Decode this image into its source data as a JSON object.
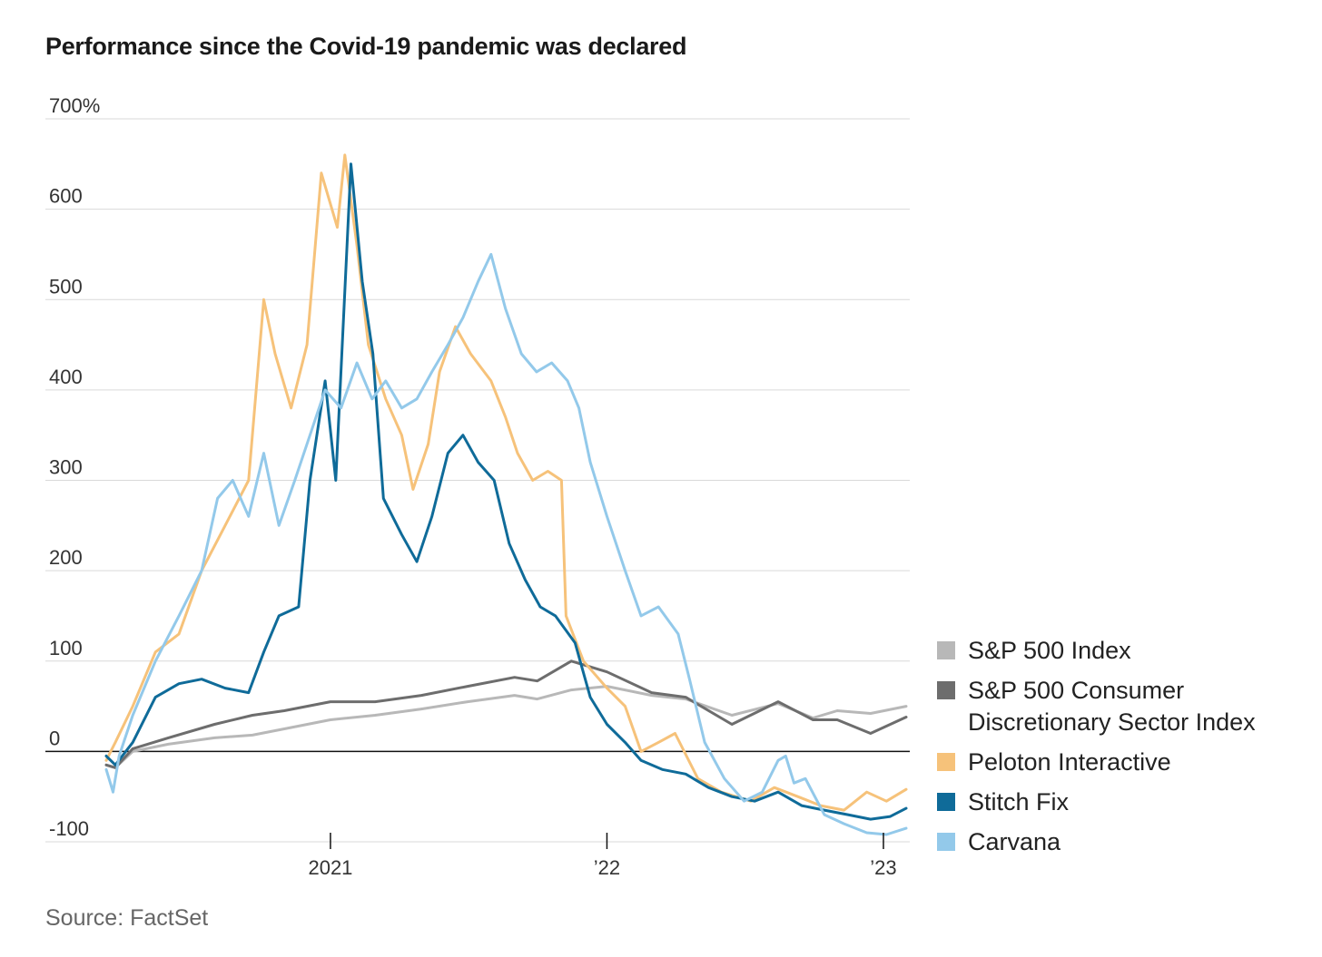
{
  "title": "Performance since the Covid-19 pandemic was declared",
  "source": "Source: FactSet",
  "chart_data": {
    "type": "line",
    "title": "Performance since the Covid-19 pandemic was declared",
    "ylabel": "",
    "xlabel": "",
    "y_unit": "%",
    "ylim": [
      -100,
      700
    ],
    "xlim": [
      "2020-03-11",
      "2023-01-31"
    ],
    "y_ticks": [
      -100,
      0,
      100,
      200,
      300,
      400,
      500,
      600,
      700
    ],
    "y_tick_labels": [
      "-100",
      "0",
      "100",
      "200",
      "300",
      "400",
      "500",
      "600",
      "700%"
    ],
    "x_ticks": [
      "2021-01-01",
      "2022-01-01",
      "2023-01-01"
    ],
    "x_tick_labels": [
      "2021",
      "’22",
      "’23"
    ],
    "grid": true,
    "legend_position": "right-bottom",
    "series": [
      {
        "name": "S&P 500 Index",
        "color": "#b8b8b8",
        "points": [
          [
            "2020-03-11",
            -15
          ],
          [
            "2020-03-23",
            -18
          ],
          [
            "2020-04-15",
            0
          ],
          [
            "2020-06-01",
            8
          ],
          [
            "2020-08-01",
            15
          ],
          [
            "2020-09-20",
            18
          ],
          [
            "2020-11-01",
            25
          ],
          [
            "2021-01-01",
            35
          ],
          [
            "2021-03-01",
            40
          ],
          [
            "2021-05-01",
            47
          ],
          [
            "2021-07-01",
            55
          ],
          [
            "2021-09-01",
            62
          ],
          [
            "2021-10-01",
            58
          ],
          [
            "2021-11-15",
            68
          ],
          [
            "2022-01-01",
            72
          ],
          [
            "2022-03-01",
            62
          ],
          [
            "2022-04-15",
            58
          ],
          [
            "2022-06-15",
            40
          ],
          [
            "2022-08-15",
            53
          ],
          [
            "2022-09-30",
            37
          ],
          [
            "2022-11-01",
            45
          ],
          [
            "2022-12-15",
            42
          ],
          [
            "2023-01-31",
            50
          ]
        ]
      },
      {
        "name": "S&P 500 Consumer Discretionary Sector Index",
        "color": "#6d6d6d",
        "points": [
          [
            "2020-03-11",
            -15
          ],
          [
            "2020-03-23",
            -18
          ],
          [
            "2020-04-15",
            3
          ],
          [
            "2020-06-01",
            15
          ],
          [
            "2020-08-01",
            30
          ],
          [
            "2020-09-20",
            40
          ],
          [
            "2020-11-01",
            45
          ],
          [
            "2021-01-01",
            55
          ],
          [
            "2021-03-01",
            55
          ],
          [
            "2021-05-01",
            62
          ],
          [
            "2021-07-01",
            72
          ],
          [
            "2021-09-01",
            82
          ],
          [
            "2021-10-01",
            78
          ],
          [
            "2021-11-15",
            100
          ],
          [
            "2022-01-01",
            88
          ],
          [
            "2022-03-01",
            65
          ],
          [
            "2022-04-15",
            60
          ],
          [
            "2022-06-15",
            30
          ],
          [
            "2022-08-15",
            55
          ],
          [
            "2022-09-30",
            35
          ],
          [
            "2022-11-01",
            35
          ],
          [
            "2022-12-15",
            20
          ],
          [
            "2023-01-31",
            38
          ]
        ]
      },
      {
        "name": "Peloton Interactive",
        "color": "#f6c27a",
        "points": [
          [
            "2020-03-11",
            -10
          ],
          [
            "2020-03-23",
            10
          ],
          [
            "2020-04-15",
            50
          ],
          [
            "2020-05-15",
            110
          ],
          [
            "2020-06-15",
            130
          ],
          [
            "2020-07-15",
            200
          ],
          [
            "2020-08-15",
            250
          ],
          [
            "2020-09-15",
            300
          ],
          [
            "2020-10-05",
            500
          ],
          [
            "2020-10-20",
            440
          ],
          [
            "2020-11-10",
            380
          ],
          [
            "2020-12-01",
            450
          ],
          [
            "2020-12-20",
            640
          ],
          [
            "2021-01-10",
            580
          ],
          [
            "2021-01-20",
            660
          ],
          [
            "2021-02-05",
            560
          ],
          [
            "2021-02-20",
            450
          ],
          [
            "2021-03-15",
            390
          ],
          [
            "2021-04-05",
            350
          ],
          [
            "2021-04-20",
            290
          ],
          [
            "2021-05-10",
            340
          ],
          [
            "2021-05-25",
            420
          ],
          [
            "2021-06-15",
            470
          ],
          [
            "2021-07-05",
            440
          ],
          [
            "2021-08-01",
            410
          ],
          [
            "2021-08-20",
            370
          ],
          [
            "2021-09-05",
            330
          ],
          [
            "2021-09-25",
            300
          ],
          [
            "2021-10-15",
            310
          ],
          [
            "2021-11-02",
            300
          ],
          [
            "2021-11-08",
            150
          ],
          [
            "2021-12-01",
            100
          ],
          [
            "2022-01-01",
            70
          ],
          [
            "2022-01-25",
            50
          ],
          [
            "2022-02-15",
            0
          ],
          [
            "2022-03-10",
            10
          ],
          [
            "2022-04-01",
            20
          ],
          [
            "2022-05-01",
            -30
          ],
          [
            "2022-06-01",
            -45
          ],
          [
            "2022-07-10",
            -55
          ],
          [
            "2022-08-10",
            -40
          ],
          [
            "2022-09-10",
            -50
          ],
          [
            "2022-10-10",
            -60
          ],
          [
            "2022-11-10",
            -65
          ],
          [
            "2022-12-10",
            -45
          ],
          [
            "2023-01-05",
            -55
          ],
          [
            "2023-01-31",
            -42
          ]
        ]
      },
      {
        "name": "Stitch Fix",
        "color": "#0f6b99",
        "points": [
          [
            "2020-03-11",
            -5
          ],
          [
            "2020-03-23",
            -15
          ],
          [
            "2020-04-15",
            10
          ],
          [
            "2020-05-15",
            60
          ],
          [
            "2020-06-15",
            75
          ],
          [
            "2020-07-15",
            80
          ],
          [
            "2020-08-15",
            70
          ],
          [
            "2020-09-15",
            65
          ],
          [
            "2020-10-05",
            110
          ],
          [
            "2020-10-25",
            150
          ],
          [
            "2020-11-20",
            160
          ],
          [
            "2020-12-05",
            300
          ],
          [
            "2020-12-25",
            410
          ],
          [
            "2021-01-08",
            300
          ],
          [
            "2021-01-28",
            650
          ],
          [
            "2021-02-12",
            520
          ],
          [
            "2021-02-26",
            440
          ],
          [
            "2021-03-12",
            280
          ],
          [
            "2021-04-05",
            240
          ],
          [
            "2021-04-25",
            210
          ],
          [
            "2021-05-15",
            260
          ],
          [
            "2021-06-05",
            330
          ],
          [
            "2021-06-25",
            350
          ],
          [
            "2021-07-15",
            320
          ],
          [
            "2021-08-05",
            300
          ],
          [
            "2021-08-25",
            230
          ],
          [
            "2021-09-15",
            190
          ],
          [
            "2021-10-05",
            160
          ],
          [
            "2021-10-25",
            150
          ],
          [
            "2021-11-20",
            120
          ],
          [
            "2021-12-10",
            60
          ],
          [
            "2022-01-01",
            30
          ],
          [
            "2022-01-25",
            10
          ],
          [
            "2022-02-15",
            -10
          ],
          [
            "2022-03-15",
            -20
          ],
          [
            "2022-04-15",
            -25
          ],
          [
            "2022-05-15",
            -40
          ],
          [
            "2022-06-15",
            -50
          ],
          [
            "2022-07-15",
            -55
          ],
          [
            "2022-08-15",
            -45
          ],
          [
            "2022-09-15",
            -60
          ],
          [
            "2022-10-15",
            -65
          ],
          [
            "2022-11-15",
            -70
          ],
          [
            "2022-12-15",
            -75
          ],
          [
            "2023-01-10",
            -72
          ],
          [
            "2023-01-31",
            -63
          ]
        ]
      },
      {
        "name": "Carvana",
        "color": "#93c9ea",
        "points": [
          [
            "2020-03-11",
            -20
          ],
          [
            "2020-03-20",
            -45
          ],
          [
            "2020-03-28",
            -5
          ],
          [
            "2020-04-15",
            40
          ],
          [
            "2020-05-15",
            100
          ],
          [
            "2020-06-15",
            150
          ],
          [
            "2020-07-15",
            200
          ],
          [
            "2020-08-05",
            280
          ],
          [
            "2020-08-25",
            300
          ],
          [
            "2020-09-15",
            260
          ],
          [
            "2020-10-05",
            330
          ],
          [
            "2020-10-25",
            250
          ],
          [
            "2020-11-15",
            300
          ],
          [
            "2020-12-05",
            350
          ],
          [
            "2020-12-25",
            400
          ],
          [
            "2021-01-15",
            380
          ],
          [
            "2021-02-05",
            430
          ],
          [
            "2021-02-25",
            390
          ],
          [
            "2021-03-15",
            410
          ],
          [
            "2021-04-05",
            380
          ],
          [
            "2021-04-25",
            390
          ],
          [
            "2021-05-15",
            420
          ],
          [
            "2021-06-05",
            450
          ],
          [
            "2021-06-25",
            480
          ],
          [
            "2021-07-15",
            520
          ],
          [
            "2021-08-01",
            550
          ],
          [
            "2021-08-20",
            490
          ],
          [
            "2021-09-10",
            440
          ],
          [
            "2021-09-30",
            420
          ],
          [
            "2021-10-20",
            430
          ],
          [
            "2021-11-10",
            410
          ],
          [
            "2021-11-25",
            380
          ],
          [
            "2021-12-10",
            320
          ],
          [
            "2022-01-01",
            260
          ],
          [
            "2022-01-25",
            200
          ],
          [
            "2022-02-15",
            150
          ],
          [
            "2022-03-10",
            160
          ],
          [
            "2022-04-05",
            130
          ],
          [
            "2022-04-20",
            80
          ],
          [
            "2022-05-10",
            10
          ],
          [
            "2022-06-05",
            -30
          ],
          [
            "2022-07-01",
            -55
          ],
          [
            "2022-07-25",
            -45
          ],
          [
            "2022-08-15",
            -10
          ],
          [
            "2022-08-25",
            -5
          ],
          [
            "2022-09-05",
            -35
          ],
          [
            "2022-09-20",
            -30
          ],
          [
            "2022-10-15",
            -70
          ],
          [
            "2022-11-10",
            -80
          ],
          [
            "2022-12-10",
            -90
          ],
          [
            "2023-01-05",
            -92
          ],
          [
            "2023-01-31",
            -85
          ]
        ]
      }
    ]
  }
}
